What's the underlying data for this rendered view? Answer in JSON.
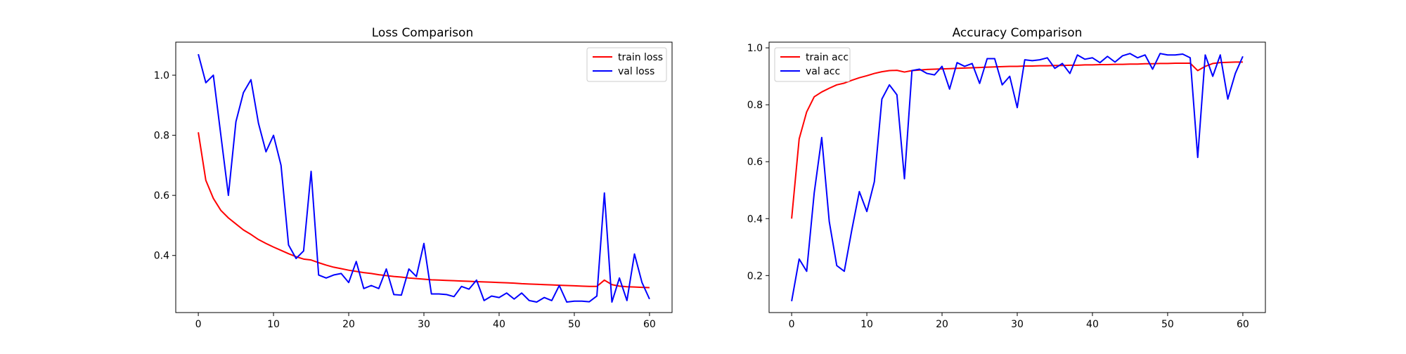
{
  "chart_data": [
    {
      "type": "line",
      "title": "Loss Comparison",
      "xlabel": "",
      "ylabel": "",
      "xlim": [
        -3,
        63
      ],
      "ylim": [
        0.21,
        1.11
      ],
      "xticks": [
        0,
        10,
        20,
        30,
        40,
        50,
        60
      ],
      "yticks": [
        0.4,
        0.6,
        0.8,
        1.0
      ],
      "xtick_labels": [
        "0",
        "10",
        "20",
        "30",
        "40",
        "50",
        "60"
      ],
      "ytick_labels": [
        "0.4",
        "0.6",
        "0.8",
        "1.0"
      ],
      "legend_position": "upper right",
      "grid": false,
      "x": [
        0,
        1,
        2,
        3,
        4,
        5,
        6,
        7,
        8,
        9,
        10,
        11,
        12,
        13,
        14,
        15,
        16,
        17,
        18,
        19,
        20,
        21,
        22,
        23,
        24,
        25,
        26,
        27,
        28,
        29,
        30,
        31,
        32,
        33,
        34,
        35,
        36,
        37,
        38,
        39,
        40,
        41,
        42,
        43,
        44,
        45,
        46,
        47,
        48,
        49,
        50,
        51,
        52,
        53,
        54,
        55,
        56,
        57,
        58,
        59,
        60
      ],
      "series": [
        {
          "name": "train loss",
          "color": "#ff0000",
          "values": [
            0.81,
            0.65,
            0.59,
            0.55,
            0.525,
            0.505,
            0.485,
            0.47,
            0.453,
            0.44,
            0.428,
            0.417,
            0.406,
            0.396,
            0.388,
            0.385,
            0.376,
            0.368,
            0.361,
            0.356,
            0.351,
            0.347,
            0.343,
            0.34,
            0.336,
            0.333,
            0.33,
            0.328,
            0.325,
            0.323,
            0.321,
            0.319,
            0.318,
            0.317,
            0.316,
            0.315,
            0.314,
            0.313,
            0.312,
            0.311,
            0.31,
            0.309,
            0.308,
            0.306,
            0.305,
            0.304,
            0.303,
            0.302,
            0.301,
            0.3,
            0.299,
            0.298,
            0.297,
            0.297,
            0.318,
            0.303,
            0.298,
            0.296,
            0.295,
            0.294,
            0.293
          ]
        },
        {
          "name": "val loss",
          "color": "#0000ff",
          "values": [
            1.07,
            0.975,
            1.0,
            0.8,
            0.6,
            0.845,
            0.942,
            0.985,
            0.84,
            0.745,
            0.8,
            0.7,
            0.435,
            0.39,
            0.415,
            0.68,
            0.335,
            0.325,
            0.335,
            0.34,
            0.31,
            0.38,
            0.29,
            0.3,
            0.29,
            0.355,
            0.27,
            0.268,
            0.355,
            0.33,
            0.44,
            0.272,
            0.272,
            0.27,
            0.263,
            0.297,
            0.288,
            0.318,
            0.25,
            0.265,
            0.26,
            0.275,
            0.255,
            0.275,
            0.25,
            0.245,
            0.26,
            0.25,
            0.3,
            0.245,
            0.248,
            0.248,
            0.246,
            0.265,
            0.608,
            0.245,
            0.325,
            0.25,
            0.405,
            0.31,
            0.255
          ]
        }
      ]
    },
    {
      "type": "line",
      "title": "Accuracy Comparison",
      "xlabel": "",
      "ylabel": "",
      "xlim": [
        -3,
        63
      ],
      "ylim": [
        0.07,
        1.02
      ],
      "xticks": [
        0,
        10,
        20,
        30,
        40,
        50,
        60
      ],
      "yticks": [
        0.2,
        0.4,
        0.6,
        0.8,
        1.0
      ],
      "xtick_labels": [
        "0",
        "10",
        "20",
        "30",
        "40",
        "50",
        "60"
      ],
      "ytick_labels": [
        "0.2",
        "0.4",
        "0.6",
        "0.8",
        "1.0"
      ],
      "legend_position": "upper left",
      "grid": false,
      "x": [
        0,
        1,
        2,
        3,
        4,
        5,
        6,
        7,
        8,
        9,
        10,
        11,
        12,
        13,
        14,
        15,
        16,
        17,
        18,
        19,
        20,
        21,
        22,
        23,
        24,
        25,
        26,
        27,
        28,
        29,
        30,
        31,
        32,
        33,
        34,
        35,
        36,
        37,
        38,
        39,
        40,
        41,
        42,
        43,
        44,
        45,
        46,
        47,
        48,
        49,
        50,
        51,
        52,
        53,
        54,
        55,
        56,
        57,
        58,
        59,
        60
      ],
      "series": [
        {
          "name": "train acc",
          "color": "#ff0000",
          "values": [
            0.4,
            0.68,
            0.775,
            0.828,
            0.845,
            0.858,
            0.87,
            0.876,
            0.886,
            0.895,
            0.902,
            0.91,
            0.916,
            0.92,
            0.921,
            0.915,
            0.92,
            0.922,
            0.924,
            0.925,
            0.926,
            0.927,
            0.928,
            0.929,
            0.93,
            0.931,
            0.932,
            0.933,
            0.934,
            0.935,
            0.935,
            0.936,
            0.936,
            0.937,
            0.937,
            0.938,
            0.938,
            0.939,
            0.939,
            0.94,
            0.94,
            0.941,
            0.941,
            0.942,
            0.942,
            0.943,
            0.943,
            0.944,
            0.944,
            0.945,
            0.945,
            0.946,
            0.946,
            0.946,
            0.92,
            0.935,
            0.945,
            0.948,
            0.949,
            0.95,
            0.95
          ]
        },
        {
          "name": "val acc",
          "color": "#0000ff",
          "values": [
            0.11,
            0.258,
            0.215,
            0.49,
            0.685,
            0.39,
            0.235,
            0.215,
            0.36,
            0.495,
            0.425,
            0.53,
            0.82,
            0.87,
            0.835,
            0.54,
            0.92,
            0.925,
            0.91,
            0.905,
            0.935,
            0.855,
            0.948,
            0.935,
            0.945,
            0.875,
            0.962,
            0.962,
            0.87,
            0.9,
            0.79,
            0.958,
            0.955,
            0.958,
            0.965,
            0.928,
            0.945,
            0.91,
            0.975,
            0.96,
            0.965,
            0.948,
            0.97,
            0.95,
            0.972,
            0.98,
            0.965,
            0.975,
            0.925,
            0.98,
            0.975,
            0.975,
            0.978,
            0.965,
            0.615,
            0.975,
            0.9,
            0.975,
            0.82,
            0.91,
            0.97
          ]
        }
      ]
    }
  ]
}
